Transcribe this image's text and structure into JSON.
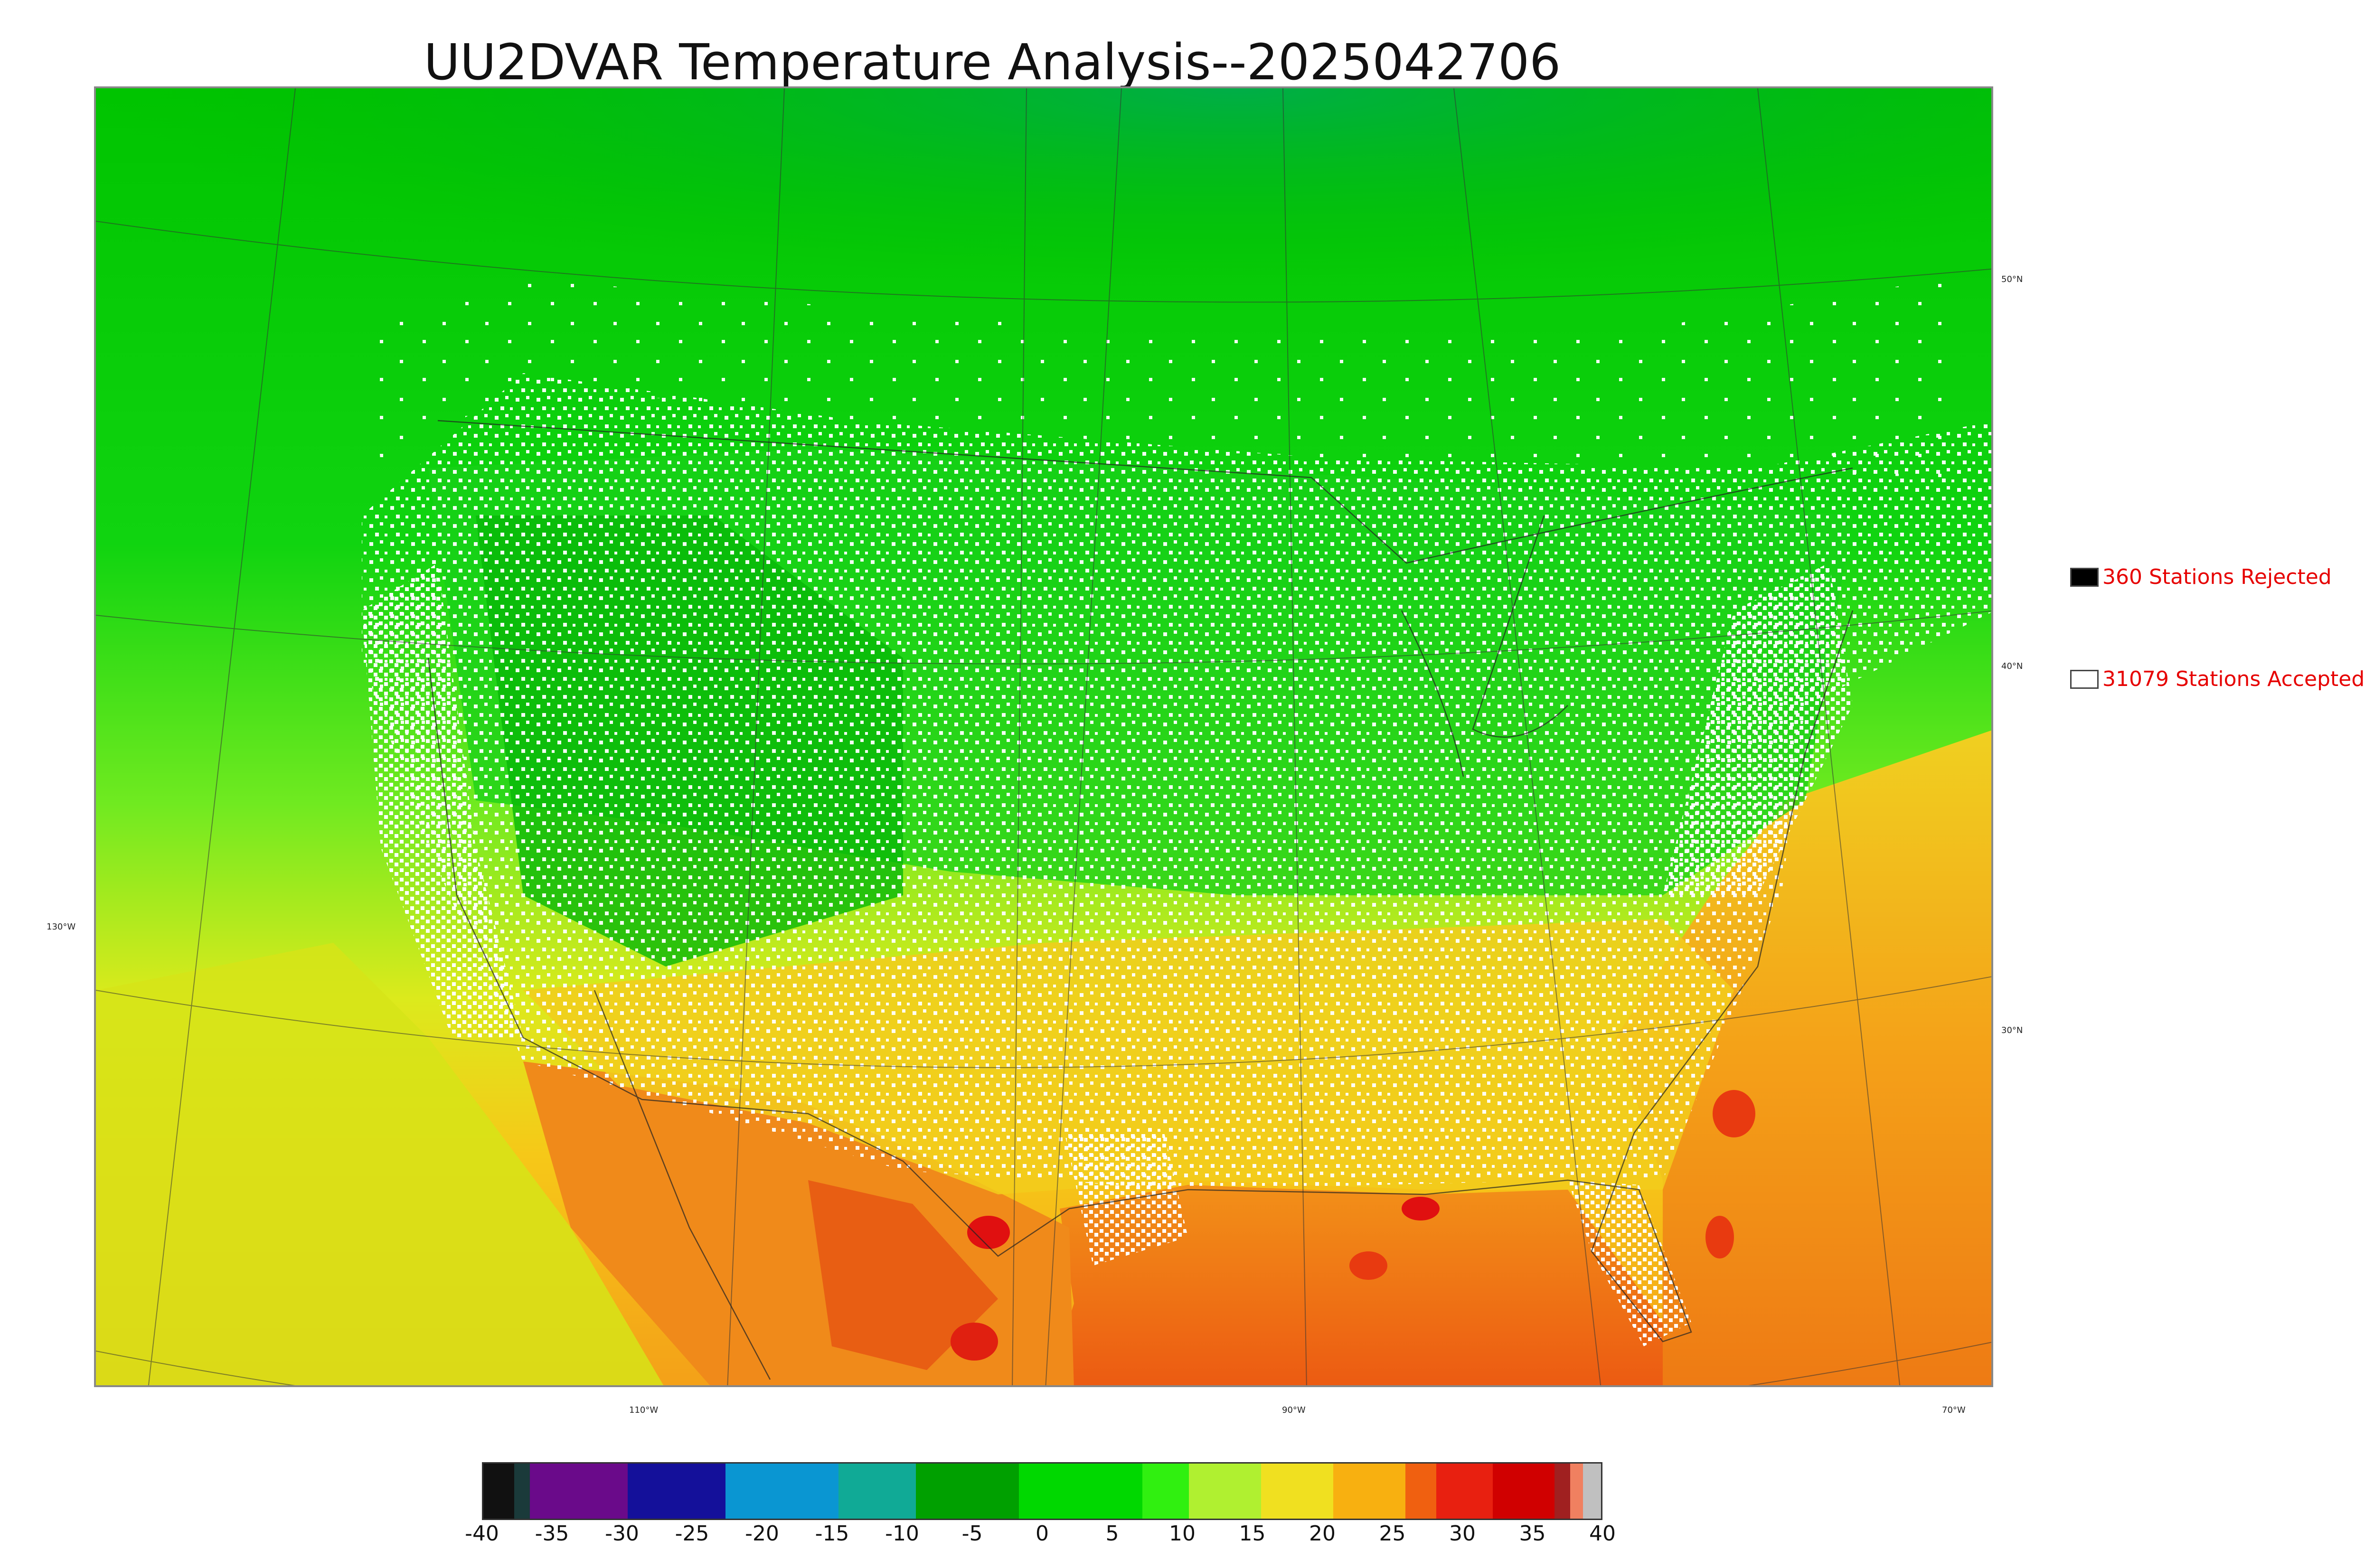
{
  "title": "UU2DVAR Temperature Analysis--2025042706",
  "legend": {
    "rejected": {
      "label": "360 Stations Rejected",
      "swatch": "#000000"
    },
    "accepted": {
      "label": "31079 Stations Accepted",
      "swatch": "#ffffff"
    }
  },
  "longitude_labels": [
    "130°W",
    "110°W",
    "90°W",
    "70°W"
  ],
  "latitude_labels": [
    "50°N",
    "40°N",
    "30°N"
  ],
  "colorbar": {
    "ticks": [
      "-40",
      "-35",
      "-30",
      "-25",
      "-20",
      "-15",
      "-10",
      "-5",
      "0",
      "5",
      "10",
      "15",
      "20",
      "25",
      "30",
      "35",
      "40"
    ],
    "segments": [
      {
        "color": "#111111",
        "w": 1.2
      },
      {
        "color": "#1a3a3a",
        "w": 0.6
      },
      {
        "color": "#6a0a8a",
        "w": 3.8
      },
      {
        "color": "#14109a",
        "w": 3.8
      },
      {
        "color": "#0a96d2",
        "w": 4.4
      },
      {
        "color": "#10aa96",
        "w": 3.0
      },
      {
        "color": "#00a000",
        "w": 4.0
      },
      {
        "color": "#00d800",
        "w": 4.8
      },
      {
        "color": "#30f010",
        "w": 1.8
      },
      {
        "color": "#b0f030",
        "w": 2.8
      },
      {
        "color": "#f0e020",
        "w": 2.8
      },
      {
        "color": "#f8b010",
        "w": 2.8
      },
      {
        "color": "#f06010",
        "w": 1.2
      },
      {
        "color": "#e82010",
        "w": 2.2
      },
      {
        "color": "#d00000",
        "w": 2.4
      },
      {
        "color": "#a02020",
        "w": 0.6
      },
      {
        "color": "#f08060",
        "w": 0.5
      },
      {
        "color": "#c0c0c0",
        "w": 0.7
      }
    ]
  },
  "colors": {
    "cold_land": "#00b400",
    "mild": "#20dc20",
    "warm": "#dce81e",
    "ocean_warm": "#f4a018",
    "hot": "#e84010",
    "station_accepted": "#ffffff",
    "station_rejected": "#000000"
  }
}
